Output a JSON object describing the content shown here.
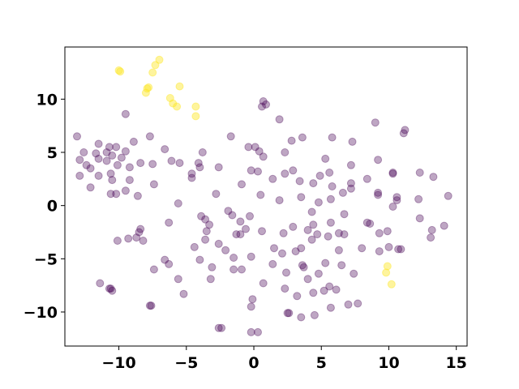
{
  "chart_data": {
    "type": "scatter",
    "title": "",
    "xlabel": "",
    "ylabel": "",
    "xlim": [
      -14,
      15.8
    ],
    "ylim": [
      -13.2,
      14.9
    ],
    "x_ticks": [
      -10,
      -5,
      0,
      5,
      10,
      15
    ],
    "y_ticks": [
      -10,
      -5,
      0,
      5,
      10
    ],
    "x_tick_labels": [
      "−10",
      "−5",
      "0",
      "5",
      "10",
      "15"
    ],
    "y_tick_labels": [
      "−10",
      "−5",
      "0",
      "5",
      "10"
    ],
    "grid": false,
    "legend": "none",
    "series": [
      {
        "color": "#440154",
        "opacity": 0.35,
        "points": [
          [
            -13.1,
            6.5
          ],
          [
            -12.9,
            4.3
          ],
          [
            -12.6,
            5.0
          ],
          [
            -12.4,
            3.8
          ],
          [
            -12.9,
            2.8
          ],
          [
            -12.1,
            3.5
          ],
          [
            -12.1,
            1.7
          ],
          [
            -11.5,
            5.8
          ],
          [
            -11.5,
            4.4
          ],
          [
            -11.5,
            2.8
          ],
          [
            -11.7,
            4.9
          ],
          [
            -10.9,
            5.0
          ],
          [
            -10.9,
            4.2
          ],
          [
            -10.7,
            5.5
          ],
          [
            -10.6,
            3.0
          ],
          [
            -10.5,
            4.7
          ],
          [
            -10.5,
            2.4
          ],
          [
            -10.2,
            5.5
          ],
          [
            -10.1,
            3.8
          ],
          [
            -10.6,
            1.1
          ],
          [
            -10.2,
            1.1
          ],
          [
            -9.8,
            4.5
          ],
          [
            -9.5,
            5.1
          ],
          [
            -9.5,
            1.4
          ],
          [
            -9.2,
            2.4
          ],
          [
            -9.2,
            3.6
          ],
          [
            -8.9,
            6.0
          ],
          [
            -9.5,
            8.6
          ],
          [
            -8.4,
            4.0
          ],
          [
            -8.6,
            0.9
          ],
          [
            -7.7,
            6.5
          ],
          [
            -7.5,
            3.9
          ],
          [
            -7.4,
            2.0
          ],
          [
            -6.6,
            5.3
          ],
          [
            -6.1,
            4.2
          ],
          [
            -5.5,
            4.0
          ],
          [
            -5.6,
            0.2
          ],
          [
            -4.6,
            3.0
          ],
          [
            -4.6,
            2.6
          ],
          [
            -4.0,
            3.6
          ],
          [
            -3.8,
            5.0
          ],
          [
            -4.1,
            4.0
          ],
          [
            -2.6,
            3.6
          ],
          [
            -1.7,
            6.5
          ],
          [
            -2.8,
            1.1
          ],
          [
            -1.9,
            -0.5
          ],
          [
            -0.9,
            2.0
          ],
          [
            -0.4,
            5.5
          ],
          [
            0.1,
            5.5
          ],
          [
            0.4,
            5.1
          ],
          [
            0.7,
            4.6
          ],
          [
            -0.2,
            3.3
          ],
          [
            0.3,
            3.2
          ],
          [
            0.5,
            1.0
          ],
          [
            1.4,
            2.5
          ],
          [
            1.9,
            0.5
          ],
          [
            2.3,
            5.0
          ],
          [
            2.8,
            6.1
          ],
          [
            3.6,
            6.4
          ],
          [
            2.9,
            3.3
          ],
          [
            2.3,
            3.0
          ],
          [
            3.4,
            2.3
          ],
          [
            3.5,
            0.8
          ],
          [
            4.4,
            2.1
          ],
          [
            4.9,
            2.8
          ],
          [
            5.3,
            4.4
          ],
          [
            5.6,
            3.1
          ],
          [
            5.8,
            6.4
          ],
          [
            5.8,
            1.8
          ],
          [
            4.8,
            0.3
          ],
          [
            5.7,
            0.6
          ],
          [
            4.3,
            -0.6
          ],
          [
            4.4,
            -1.8
          ],
          [
            5.7,
            -1.6
          ],
          [
            7.2,
            3.8
          ],
          [
            7.3,
            6.0
          ],
          [
            7.2,
            2.1
          ],
          [
            7.2,
            1.6
          ],
          [
            6.6,
            1.2
          ],
          [
            6.7,
            -0.8
          ],
          [
            6.3,
            -2.6
          ],
          [
            6.7,
            -2.7
          ],
          [
            8.4,
            2.5
          ],
          [
            9.2,
            4.3
          ],
          [
            9.0,
            7.8
          ],
          [
            9.2,
            1.0
          ],
          [
            9.2,
            1.2
          ],
          [
            8.4,
            -1.6
          ],
          [
            8.6,
            -1.7
          ],
          [
            9.3,
            -2.6
          ],
          [
            9.9,
            -2.4
          ],
          [
            10.3,
            -0.1
          ],
          [
            10.6,
            0.8
          ],
          [
            10.6,
            0.5
          ],
          [
            10.3,
            3.1
          ],
          [
            10.3,
            3.0
          ],
          [
            11.1,
            6.8
          ],
          [
            11.2,
            7.1
          ],
          [
            12.2,
            0.6
          ],
          [
            12.3,
            3.1
          ],
          [
            13.3,
            2.7
          ],
          [
            12.3,
            -1.2
          ],
          [
            14.4,
            0.9
          ],
          [
            14.1,
            -1.9
          ],
          [
            13.2,
            -2.3
          ],
          [
            13.1,
            -3.0
          ],
          [
            10.0,
            -3.9
          ],
          [
            10.7,
            -4.1
          ],
          [
            10.9,
            -4.1
          ],
          [
            9.3,
            -4.3
          ],
          [
            8.0,
            -4.0
          ],
          [
            7.4,
            -6.4
          ],
          [
            6.5,
            -5.6
          ],
          [
            6.3,
            -4.2
          ],
          [
            5.3,
            -5.4
          ],
          [
            4.8,
            -6.4
          ],
          [
            3.6,
            -5.6
          ],
          [
            3.7,
            -5.8
          ],
          [
            3.1,
            -4.3
          ],
          [
            3.5,
            -4.0
          ],
          [
            4.3,
            -3.2
          ],
          [
            4.0,
            -2.3
          ],
          [
            4.7,
            -2.7
          ],
          [
            5.5,
            -2.9
          ],
          [
            2.9,
            -2.0
          ],
          [
            2.2,
            -2.6
          ],
          [
            2.1,
            -4.5
          ],
          [
            1.5,
            -4.0
          ],
          [
            0.6,
            -2.4
          ],
          [
            -0.3,
            -1.0
          ],
          [
            -0.6,
            -2.2
          ],
          [
            -1.0,
            -1.5
          ],
          [
            -1.6,
            -0.9
          ],
          [
            -1.3,
            -2.7
          ],
          [
            -1.0,
            -2.7
          ],
          [
            -1.5,
            -4.9
          ],
          [
            -2.6,
            -3.6
          ],
          [
            -3.3,
            -1.8
          ],
          [
            -3.6,
            -3.2
          ],
          [
            -3.5,
            -2.4
          ],
          [
            -3.9,
            -1.0
          ],
          [
            -3.6,
            -1.3
          ],
          [
            -4.4,
            -3.9
          ],
          [
            -4.0,
            -5.1
          ],
          [
            -3.1,
            -5.8
          ],
          [
            -3.2,
            -6.9
          ],
          [
            -2.1,
            -4.2
          ],
          [
            -1.5,
            -6.0
          ],
          [
            -0.9,
            -6.0
          ],
          [
            -0.2,
            -4.8
          ],
          [
            0.7,
            -7.3
          ],
          [
            -0.1,
            -8.8
          ],
          [
            -0.2,
            -9.5
          ],
          [
            -0.2,
            -11.9
          ],
          [
            0.3,
            -11.9
          ],
          [
            -2.6,
            -11.5
          ],
          [
            -2.4,
            -11.5
          ],
          [
            1.4,
            -5.5
          ],
          [
            2.4,
            -6.3
          ],
          [
            2.3,
            -7.8
          ],
          [
            3.2,
            -8.5
          ],
          [
            4.0,
            -6.9
          ],
          [
            4.4,
            -8.2
          ],
          [
            5.2,
            -8.0
          ],
          [
            5.6,
            -7.6
          ],
          [
            5.7,
            -9.6
          ],
          [
            6.1,
            -7.9
          ],
          [
            7.0,
            -9.3
          ],
          [
            7.7,
            -9.2
          ],
          [
            2.5,
            -10.1
          ],
          [
            2.6,
            -10.1
          ],
          [
            3.5,
            -10.5
          ],
          [
            4.5,
            -10.3
          ],
          [
            -5.6,
            -6.9
          ],
          [
            -5.2,
            -8.3
          ],
          [
            -6.3,
            -5.5
          ],
          [
            -6.6,
            -5.1
          ],
          [
            -7.4,
            -6.0
          ],
          [
            -6.3,
            -1.6
          ],
          [
            -8.2,
            -3.3
          ],
          [
            -8.4,
            -2.2
          ],
          [
            -8.5,
            -2.5
          ],
          [
            -8.7,
            -3.0
          ],
          [
            -9.3,
            -3.1
          ],
          [
            -10.1,
            -3.3
          ],
          [
            -7.6,
            -9.4
          ],
          [
            -7.7,
            -9.4
          ],
          [
            -10.5,
            -8.0
          ],
          [
            -10.6,
            -7.8
          ],
          [
            -10.7,
            -7.8
          ],
          [
            -11.4,
            -7.3
          ],
          [
            0.7,
            9.8
          ],
          [
            0.9,
            9.5
          ],
          [
            0.6,
            9.3
          ],
          [
            1.9,
            8.1
          ]
        ]
      },
      {
        "color": "#fde725",
        "opacity": 0.45,
        "points": [
          [
            -10.0,
            12.7
          ],
          [
            -9.9,
            12.6
          ],
          [
            -7.0,
            13.7
          ],
          [
            -7.3,
            13.2
          ],
          [
            -7.5,
            12.5
          ],
          [
            -7.8,
            11.1
          ],
          [
            -7.9,
            11.0
          ],
          [
            -8.0,
            10.6
          ],
          [
            -5.5,
            11.2
          ],
          [
            -6.2,
            10.1
          ],
          [
            -6.0,
            9.6
          ],
          [
            -5.7,
            9.3
          ],
          [
            -4.3,
            9.3
          ],
          [
            -4.3,
            8.4
          ],
          [
            9.9,
            -5.7
          ],
          [
            9.8,
            -6.3
          ],
          [
            10.2,
            -7.4
          ]
        ]
      }
    ]
  }
}
